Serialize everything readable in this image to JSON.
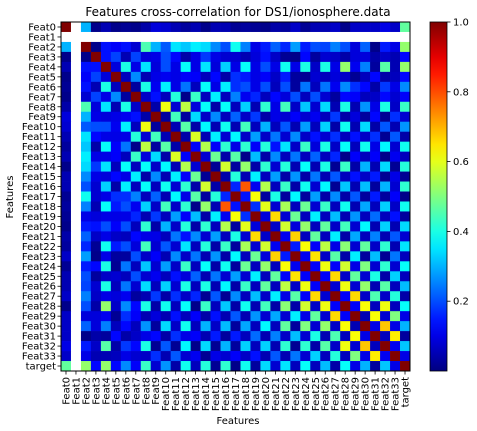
{
  "chart_data": {
    "type": "heatmap",
    "title": "Features cross-correlation for DS1/ionosphere.data",
    "xlabel": "Features",
    "ylabel": "Features",
    "labels": [
      "Feat0",
      "Feat1",
      "Feat2",
      "Feat3",
      "Feat4",
      "Feat5",
      "Feat6",
      "Feat7",
      "Feat8",
      "Feat9",
      "Feat10",
      "Feat11",
      "Feat12",
      "Feat13",
      "Feat14",
      "Feat15",
      "Feat16",
      "Feat17",
      "Feat18",
      "Feat19",
      "Feat20",
      "Feat21",
      "Feat22",
      "Feat23",
      "Feat24",
      "Feat25",
      "Feat26",
      "Feat27",
      "Feat28",
      "Feat29",
      "Feat30",
      "Feat31",
      "Feat32",
      "Feat33",
      "target"
    ],
    "colormap": "jet",
    "color_range": [
      0.0,
      1.0
    ],
    "colorbar_ticks": [
      0.2,
      0.4,
      0.6,
      0.8,
      1.0
    ],
    "colorbar_tick_labels": [
      "0.2",
      "0.4",
      "0.6",
      "0.8",
      "1.0"
    ],
    "empty_label": "Feat1",
    "values": [
      [
        1.0,
        null,
        0.3,
        0.01,
        0.05,
        0.01,
        0.02,
        0.01,
        0.04,
        0.09,
        0.08,
        0.05,
        0.03,
        0.05,
        0.01,
        0.05,
        0.05,
        0.02,
        0.03,
        0.02,
        0.01,
        0.04,
        0.03,
        0.07,
        0.02,
        0.05,
        0.05,
        0.07,
        0.01,
        0.07,
        0.07,
        0.07,
        0.1,
        0.07,
        0.47
      ],
      [
        null,
        null,
        null,
        null,
        null,
        null,
        null,
        null,
        null,
        null,
        null,
        null,
        null,
        null,
        null,
        null,
        null,
        null,
        null,
        null,
        null,
        null,
        null,
        null,
        null,
        null,
        null,
        null,
        null,
        null,
        null,
        null,
        null,
        null,
        null
      ],
      [
        0.3,
        null,
        1.0,
        0.01,
        0.14,
        0.12,
        0.14,
        0.08,
        0.45,
        0.3,
        0.21,
        0.35,
        0.32,
        0.36,
        0.34,
        0.26,
        0.2,
        0.39,
        0.25,
        0.1,
        0.15,
        0.22,
        0.16,
        0.28,
        0.15,
        0.2,
        0.19,
        0.25,
        0.2,
        0.09,
        0.22,
        0.01,
        0.15,
        0.1,
        0.52
      ],
      [
        0.01,
        null,
        0.01,
        1.0,
        0.14,
        0.19,
        0.05,
        0.19,
        0.09,
        0.1,
        0.2,
        0.13,
        0.04,
        0.1,
        0.18,
        0.1,
        0.08,
        0.08,
        0.05,
        0.09,
        0.14,
        0.07,
        0.02,
        0.01,
        0.13,
        0.03,
        0.08,
        0.07,
        0.04,
        0.09,
        0.09,
        0.04,
        0.07,
        0.05,
        0.13
      ],
      [
        0.05,
        null,
        0.14,
        0.14,
        1.0,
        0.09,
        0.4,
        0.1,
        0.35,
        0.09,
        0.2,
        0.1,
        0.38,
        0.1,
        0.35,
        0.09,
        0.33,
        0.1,
        0.38,
        0.1,
        0.2,
        0.1,
        0.39,
        0.1,
        0.4,
        0.07,
        0.4,
        0.1,
        0.52,
        0.11,
        0.25,
        0.03,
        0.46,
        0.05,
        0.52
      ],
      [
        0.01,
        null,
        0.12,
        0.19,
        0.09,
        1.0,
        0.06,
        0.26,
        0.05,
        0.1,
        0.11,
        0.1,
        0.12,
        0.12,
        0.06,
        0.13,
        0.04,
        0.17,
        0.15,
        0.1,
        0.12,
        0.07,
        0.15,
        0.03,
        0.02,
        0.08,
        0.06,
        0.09,
        0.07,
        0.02,
        0.06,
        0.13,
        0.04,
        0.06,
        0.13
      ],
      [
        0.02,
        null,
        0.14,
        0.05,
        0.4,
        0.06,
        1.0,
        0.03,
        0.4,
        0.11,
        0.36,
        0.1,
        0.24,
        0.06,
        0.38,
        0.1,
        0.36,
        0.17,
        0.2,
        0.1,
        0.2,
        0.06,
        0.2,
        0.03,
        0.24,
        0.06,
        0.24,
        0.11,
        0.26,
        0.17,
        0.13,
        0.04,
        0.18,
        0.1,
        0.26
      ],
      [
        0.01,
        null,
        0.08,
        0.19,
        0.1,
        0.26,
        0.03,
        1.0,
        0.07,
        0.14,
        0.06,
        0.41,
        0.01,
        0.43,
        0.06,
        0.36,
        0.06,
        0.25,
        0.11,
        0.16,
        0.06,
        0.13,
        0.09,
        0.2,
        0.06,
        0.2,
        0.08,
        0.03,
        0.13,
        0.12,
        0.06,
        0.07,
        0.13,
        0.08,
        0.12
      ],
      [
        0.04,
        null,
        0.45,
        0.09,
        0.35,
        0.05,
        0.4,
        0.07,
        1.0,
        0.04,
        0.61,
        0.08,
        0.56,
        0.09,
        0.38,
        0.04,
        0.38,
        0.06,
        0.33,
        0.05,
        0.42,
        0.1,
        0.44,
        0.07,
        0.32,
        0.08,
        0.34,
        0.05,
        0.4,
        0.05,
        0.27,
        0.1,
        0.4,
        0.07,
        0.43
      ],
      [
        0.09,
        null,
        0.3,
        0.1,
        0.09,
        0.1,
        0.11,
        0.14,
        0.04,
        1.0,
        0.03,
        0.44,
        0.03,
        0.34,
        0.07,
        0.26,
        0.06,
        0.22,
        0.07,
        0.18,
        0.04,
        0.1,
        0.08,
        0.12,
        0.08,
        0.11,
        0.06,
        0.18,
        0.04,
        0.09,
        0.03,
        0.13,
        0.02,
        0.17,
        0.08
      ],
      [
        0.08,
        null,
        0.21,
        0.2,
        0.2,
        0.11,
        0.36,
        0.06,
        0.61,
        0.03,
        1.0,
        0.05,
        0.46,
        0.04,
        0.37,
        0.05,
        0.39,
        0.05,
        0.44,
        0.06,
        0.3,
        0.06,
        0.21,
        0.05,
        0.28,
        0.06,
        0.33,
        0.04,
        0.39,
        0.05,
        0.34,
        0.04,
        0.21,
        0.05,
        0.27
      ],
      [
        0.05,
        null,
        0.35,
        0.13,
        0.1,
        0.1,
        0.1,
        0.41,
        0.08,
        0.44,
        0.05,
        1.0,
        0.04,
        0.59,
        0.05,
        0.36,
        0.08,
        0.37,
        0.07,
        0.28,
        0.07,
        0.24,
        0.08,
        0.26,
        0.07,
        0.14,
        0.08,
        0.17,
        0.06,
        0.14,
        0.07,
        0.17,
        0.02,
        0.21,
        0.04
      ],
      [
        0.03,
        null,
        0.32,
        0.04,
        0.38,
        0.12,
        0.24,
        0.01,
        0.56,
        0.03,
        0.46,
        0.04,
        1.0,
        0.12,
        0.55,
        0.12,
        0.42,
        0.1,
        0.42,
        0.12,
        0.41,
        0.14,
        0.35,
        0.07,
        0.43,
        0.09,
        0.4,
        0.07,
        0.38,
        0.06,
        0.39,
        0.1,
        0.37,
        0.08,
        0.39
      ],
      [
        0.05,
        null,
        0.36,
        0.1,
        0.1,
        0.12,
        0.06,
        0.43,
        0.09,
        0.34,
        0.04,
        0.59,
        0.12,
        1.0,
        0.08,
        0.48,
        0.04,
        0.46,
        0.01,
        0.31,
        0.04,
        0.26,
        0.06,
        0.24,
        0.06,
        0.22,
        0.06,
        0.16,
        0.01,
        0.12,
        0.06,
        0.12,
        0.01,
        0.11,
        0.06
      ],
      [
        0.01,
        null,
        0.34,
        0.18,
        0.35,
        0.06,
        0.38,
        0.06,
        0.38,
        0.07,
        0.37,
        0.05,
        0.55,
        0.08,
        1.0,
        0.02,
        0.58,
        0.03,
        0.52,
        0.04,
        0.42,
        0.08,
        0.41,
        0.05,
        0.38,
        0.05,
        0.4,
        0.02,
        0.43,
        0.04,
        0.3,
        0.05,
        0.34,
        0.02,
        0.41
      ],
      [
        0.05,
        null,
        0.26,
        0.1,
        0.09,
        0.13,
        0.1,
        0.36,
        0.04,
        0.26,
        0.05,
        0.36,
        0.12,
        0.48,
        0.02,
        1.0,
        0.04,
        0.41,
        0.05,
        0.36,
        0.06,
        0.28,
        0.04,
        0.27,
        0.04,
        0.24,
        0.05,
        0.21,
        0.06,
        0.14,
        0.07,
        0.15,
        0.02,
        0.1,
        0.02
      ],
      [
        0.05,
        null,
        0.2,
        0.08,
        0.33,
        0.04,
        0.36,
        0.06,
        0.38,
        0.06,
        0.39,
        0.08,
        0.42,
        0.04,
        0.58,
        0.04,
        1.0,
        0.16,
        0.79,
        0.11,
        0.55,
        0.06,
        0.43,
        0.04,
        0.39,
        0.08,
        0.37,
        0.02,
        0.32,
        0.05,
        0.31,
        0.03,
        0.3,
        0.08,
        0.42
      ],
      [
        0.02,
        null,
        0.39,
        0.08,
        0.1,
        0.17,
        0.17,
        0.25,
        0.06,
        0.22,
        0.05,
        0.37,
        0.1,
        0.46,
        0.03,
        0.41,
        0.16,
        1.0,
        0.14,
        0.62,
        0.03,
        0.4,
        0.03,
        0.37,
        0.03,
        0.28,
        0.04,
        0.26,
        0.04,
        0.21,
        0.03,
        0.15,
        0.03,
        0.12,
        0.01
      ],
      [
        0.03,
        null,
        0.25,
        0.05,
        0.38,
        0.15,
        0.2,
        0.11,
        0.33,
        0.07,
        0.44,
        0.07,
        0.42,
        0.01,
        0.52,
        0.05,
        0.79,
        0.14,
        1.0,
        0.17,
        0.6,
        0.08,
        0.54,
        0.06,
        0.48,
        0.08,
        0.43,
        0.06,
        0.39,
        0.05,
        0.29,
        0.06,
        0.33,
        0.07,
        0.39
      ],
      [
        0.02,
        null,
        0.1,
        0.09,
        0.1,
        0.1,
        0.1,
        0.16,
        0.05,
        0.18,
        0.06,
        0.28,
        0.12,
        0.31,
        0.04,
        0.36,
        0.11,
        0.62,
        0.17,
        1.0,
        0.09,
        0.66,
        0.08,
        0.48,
        0.06,
        0.36,
        0.06,
        0.31,
        0.05,
        0.27,
        0.06,
        0.23,
        0.06,
        0.14,
        0.03
      ],
      [
        0.01,
        null,
        0.15,
        0.14,
        0.2,
        0.12,
        0.2,
        0.06,
        0.42,
        0.04,
        0.3,
        0.07,
        0.41,
        0.04,
        0.42,
        0.06,
        0.55,
        0.03,
        0.6,
        0.09,
        1.0,
        0.07,
        0.58,
        0.09,
        0.52,
        0.06,
        0.47,
        0.07,
        0.44,
        0.08,
        0.37,
        0.05,
        0.33,
        0.05,
        0.34
      ],
      [
        0.04,
        null,
        0.22,
        0.07,
        0.1,
        0.07,
        0.06,
        0.13,
        0.1,
        0.1,
        0.06,
        0.24,
        0.14,
        0.26,
        0.08,
        0.28,
        0.06,
        0.4,
        0.08,
        0.66,
        0.07,
        1.0,
        0.11,
        0.67,
        0.06,
        0.47,
        0.06,
        0.36,
        0.04,
        0.29,
        0.06,
        0.25,
        0.05,
        0.21,
        0.08
      ],
      [
        0.03,
        null,
        0.16,
        0.02,
        0.39,
        0.15,
        0.2,
        0.09,
        0.44,
        0.08,
        0.21,
        0.08,
        0.35,
        0.06,
        0.41,
        0.04,
        0.43,
        0.03,
        0.54,
        0.08,
        0.58,
        0.11,
        1.0,
        0.15,
        0.62,
        0.12,
        0.56,
        0.1,
        0.51,
        0.08,
        0.47,
        0.07,
        0.42,
        0.05,
        0.35
      ],
      [
        0.07,
        null,
        0.28,
        0.01,
        0.1,
        0.03,
        0.03,
        0.2,
        0.07,
        0.12,
        0.05,
        0.26,
        0.07,
        0.24,
        0.05,
        0.27,
        0.04,
        0.37,
        0.06,
        0.48,
        0.09,
        0.67,
        0.15,
        1.0,
        0.11,
        0.65,
        0.07,
        0.46,
        0.04,
        0.36,
        0.03,
        0.31,
        0.02,
        0.24,
        0.06
      ],
      [
        0.02,
        null,
        0.15,
        0.13,
        0.4,
        0.02,
        0.24,
        0.06,
        0.32,
        0.08,
        0.28,
        0.07,
        0.43,
        0.06,
        0.38,
        0.04,
        0.39,
        0.03,
        0.48,
        0.06,
        0.52,
        0.06,
        0.62,
        0.11,
        1.0,
        0.12,
        0.61,
        0.12,
        0.58,
        0.1,
        0.5,
        0.08,
        0.42,
        0.08,
        0.38
      ],
      [
        0.05,
        null,
        0.2,
        0.03,
        0.07,
        0.08,
        0.06,
        0.2,
        0.08,
        0.11,
        0.06,
        0.14,
        0.09,
        0.22,
        0.05,
        0.24,
        0.08,
        0.28,
        0.08,
        0.36,
        0.06,
        0.47,
        0.12,
        0.65,
        0.12,
        1.0,
        0.12,
        0.66,
        0.07,
        0.47,
        0.08,
        0.4,
        0.04,
        0.33,
        0.06
      ],
      [
        0.05,
        null,
        0.19,
        0.08,
        0.4,
        0.06,
        0.24,
        0.08,
        0.34,
        0.06,
        0.33,
        0.08,
        0.4,
        0.06,
        0.4,
        0.05,
        0.37,
        0.04,
        0.43,
        0.06,
        0.47,
        0.06,
        0.56,
        0.07,
        0.61,
        0.12,
        1.0,
        0.08,
        0.61,
        0.08,
        0.52,
        0.05,
        0.46,
        0.06,
        0.31
      ],
      [
        0.07,
        null,
        0.25,
        0.07,
        0.1,
        0.09,
        0.11,
        0.03,
        0.05,
        0.18,
        0.04,
        0.17,
        0.07,
        0.16,
        0.02,
        0.21,
        0.02,
        0.26,
        0.06,
        0.31,
        0.07,
        0.36,
        0.1,
        0.46,
        0.12,
        0.66,
        0.08,
        1.0,
        0.12,
        0.66,
        0.07,
        0.45,
        0.07,
        0.41,
        0.04
      ],
      [
        0.01,
        null,
        0.2,
        0.04,
        0.52,
        0.07,
        0.26,
        0.13,
        0.4,
        0.04,
        0.39,
        0.06,
        0.38,
        0.01,
        0.43,
        0.06,
        0.32,
        0.04,
        0.39,
        0.05,
        0.44,
        0.04,
        0.51,
        0.04,
        0.58,
        0.07,
        0.61,
        0.12,
        1.0,
        0.12,
        0.62,
        0.06,
        0.61,
        0.06,
        0.38
      ],
      [
        0.07,
        null,
        0.09,
        0.09,
        0.11,
        0.02,
        0.17,
        0.12,
        0.05,
        0.09,
        0.05,
        0.14,
        0.06,
        0.12,
        0.04,
        0.14,
        0.05,
        0.21,
        0.05,
        0.27,
        0.08,
        0.29,
        0.08,
        0.36,
        0.1,
        0.47,
        0.08,
        0.66,
        0.12,
        1.0,
        0.05,
        0.62,
        0.08,
        0.5,
        0.1
      ],
      [
        0.07,
        null,
        0.22,
        0.09,
        0.25,
        0.06,
        0.13,
        0.06,
        0.27,
        0.03,
        0.34,
        0.07,
        0.39,
        0.06,
        0.3,
        0.07,
        0.31,
        0.03,
        0.29,
        0.06,
        0.37,
        0.06,
        0.47,
        0.03,
        0.5,
        0.08,
        0.52,
        0.07,
        0.62,
        0.05,
        1.0,
        0.1,
        0.68,
        0.1,
        0.3
      ],
      [
        0.07,
        null,
        0.01,
        0.04,
        0.03,
        0.13,
        0.04,
        0.07,
        0.1,
        0.13,
        0.04,
        0.17,
        0.1,
        0.12,
        0.05,
        0.15,
        0.03,
        0.15,
        0.06,
        0.23,
        0.05,
        0.25,
        0.07,
        0.31,
        0.08,
        0.4,
        0.05,
        0.45,
        0.06,
        0.62,
        0.1,
        1.0,
        0.06,
        0.64,
        0.03
      ],
      [
        0.1,
        null,
        0.15,
        0.07,
        0.46,
        0.04,
        0.18,
        0.13,
        0.4,
        0.02,
        0.21,
        0.02,
        0.37,
        0.01,
        0.34,
        0.02,
        0.3,
        0.03,
        0.33,
        0.06,
        0.33,
        0.05,
        0.42,
        0.02,
        0.42,
        0.04,
        0.46,
        0.07,
        0.61,
        0.08,
        0.68,
        0.06,
        1.0,
        0.11,
        0.32
      ],
      [
        0.07,
        null,
        0.1,
        0.05,
        0.05,
        0.06,
        0.1,
        0.08,
        0.07,
        0.17,
        0.05,
        0.21,
        0.08,
        0.11,
        0.02,
        0.1,
        0.08,
        0.12,
        0.07,
        0.14,
        0.05,
        0.21,
        0.05,
        0.24,
        0.08,
        0.33,
        0.06,
        0.41,
        0.06,
        0.5,
        0.1,
        0.64,
        0.11,
        1.0,
        0.1
      ],
      [
        0.47,
        null,
        0.52,
        0.13,
        0.52,
        0.13,
        0.26,
        0.12,
        0.43,
        0.08,
        0.27,
        0.04,
        0.39,
        0.06,
        0.41,
        0.02,
        0.42,
        0.01,
        0.39,
        0.03,
        0.34,
        0.08,
        0.35,
        0.06,
        0.38,
        0.06,
        0.31,
        0.04,
        0.38,
        0.1,
        0.3,
        0.03,
        0.32,
        0.1,
        1.0
      ]
    ]
  }
}
